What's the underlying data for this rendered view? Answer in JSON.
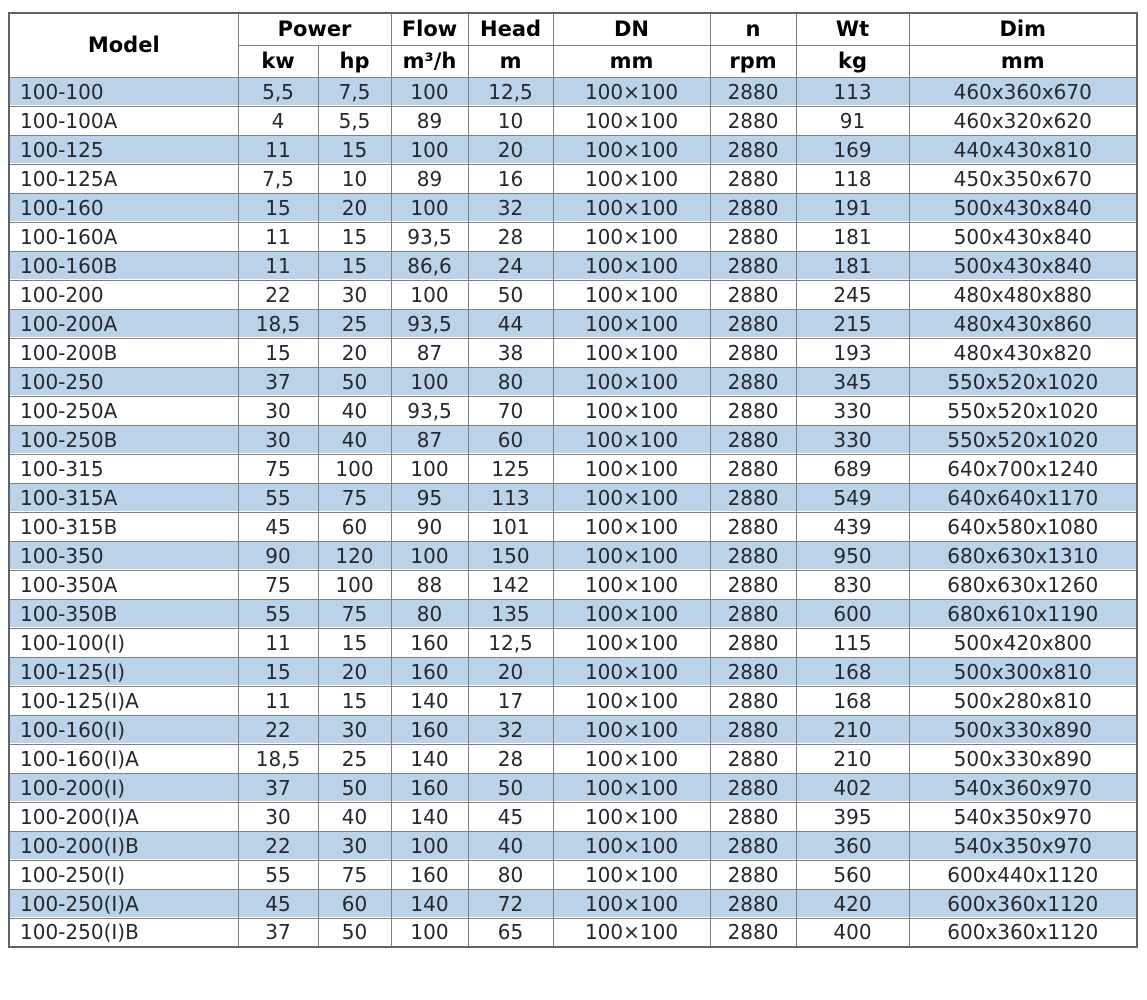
{
  "colors": {
    "row_alt_blue": "#bad3e9",
    "grid_border": "#808080",
    "outer_border": "#5f6368",
    "data_text": "#26282e",
    "header_text": "#000000"
  },
  "table": {
    "header": {
      "model": "Model",
      "power": "Power",
      "flow": "Flow",
      "head": "Head",
      "dn": "DN",
      "n": "n",
      "wt": "Wt",
      "dim": "Dim",
      "units": {
        "kw": "kw",
        "hp": "hp",
        "flow": "m³/h",
        "head": "m",
        "dn": "mm",
        "n": "rpm",
        "wt": "kg",
        "dim": "mm"
      }
    },
    "rows": [
      [
        "100-100",
        "5,5",
        "7,5",
        "100",
        "12,5",
        "100×100",
        "2880",
        "113",
        "460x360x670"
      ],
      [
        "100-100A",
        "4",
        "5,5",
        "89",
        "10",
        "100×100",
        "2880",
        "91",
        "460x320x620"
      ],
      [
        "100-125",
        "11",
        "15",
        "100",
        "20",
        "100×100",
        "2880",
        "169",
        "440x430x810"
      ],
      [
        "100-125A",
        "7,5",
        "10",
        "89",
        "16",
        "100×100",
        "2880",
        "118",
        "450x350x670"
      ],
      [
        "100-160",
        "15",
        "20",
        "100",
        "32",
        "100×100",
        "2880",
        "191",
        "500x430x840"
      ],
      [
        "100-160A",
        "11",
        "15",
        "93,5",
        "28",
        "100×100",
        "2880",
        "181",
        "500x430x840"
      ],
      [
        "100-160B",
        "11",
        "15",
        "86,6",
        "24",
        "100×100",
        "2880",
        "181",
        "500x430x840"
      ],
      [
        "100-200",
        "22",
        "30",
        "100",
        "50",
        "100×100",
        "2880",
        "245",
        "480x480x880"
      ],
      [
        "100-200A",
        "18,5",
        "25",
        "93,5",
        "44",
        "100×100",
        "2880",
        "215",
        "480x430x860"
      ],
      [
        "100-200B",
        "15",
        "20",
        "87",
        "38",
        "100×100",
        "2880",
        "193",
        "480x430x820"
      ],
      [
        "100-250",
        "37",
        "50",
        "100",
        "80",
        "100×100",
        "2880",
        "345",
        "550x520x1020"
      ],
      [
        "100-250A",
        "30",
        "40",
        "93,5",
        "70",
        "100×100",
        "2880",
        "330",
        "550x520x1020"
      ],
      [
        "100-250B",
        "30",
        "40",
        "87",
        "60",
        "100×100",
        "2880",
        "330",
        "550x520x1020"
      ],
      [
        "100-315",
        "75",
        "100",
        "100",
        "125",
        "100×100",
        "2880",
        "689",
        "640x700x1240"
      ],
      [
        "100-315A",
        "55",
        "75",
        "95",
        "113",
        "100×100",
        "2880",
        "549",
        "640x640x1170"
      ],
      [
        "100-315B",
        "45",
        "60",
        "90",
        "101",
        "100×100",
        "2880",
        "439",
        "640x580x1080"
      ],
      [
        "100-350",
        "90",
        "120",
        "100",
        "150",
        "100×100",
        "2880",
        "950",
        "680x630x1310"
      ],
      [
        "100-350A",
        "75",
        "100",
        "88",
        "142",
        "100×100",
        "2880",
        "830",
        "680x630x1260"
      ],
      [
        "100-350B",
        "55",
        "75",
        "80",
        "135",
        "100×100",
        "2880",
        "600",
        "680x610x1190"
      ],
      [
        "100-100(I)",
        "11",
        "15",
        "160",
        "12,5",
        "100×100",
        "2880",
        "115",
        "500x420x800"
      ],
      [
        "100-125(I)",
        "15",
        "20",
        "160",
        "20",
        "100×100",
        "2880",
        "168",
        "500x300x810"
      ],
      [
        "100-125(I)A",
        "11",
        "15",
        "140",
        "17",
        "100×100",
        "2880",
        "168",
        "500x280x810"
      ],
      [
        "100-160(I)",
        "22",
        "30",
        "160",
        "32",
        "100×100",
        "2880",
        "210",
        "500x330x890"
      ],
      [
        "100-160(I)A",
        "18,5",
        "25",
        "140",
        "28",
        "100×100",
        "2880",
        "210",
        "500x330x890"
      ],
      [
        "100-200(I)",
        "37",
        "50",
        "160",
        "50",
        "100×100",
        "2880",
        "402",
        "540x360x970"
      ],
      [
        "100-200(I)A",
        "30",
        "40",
        "140",
        "45",
        "100×100",
        "2880",
        "395",
        "540x350x970"
      ],
      [
        "100-200(I)B",
        "22",
        "30",
        "100",
        "40",
        "100×100",
        "2880",
        "360",
        "540x350x970"
      ],
      [
        "100-250(I)",
        "55",
        "75",
        "160",
        "80",
        "100×100",
        "2880",
        "560",
        "600x440x1120"
      ],
      [
        "100-250(I)A",
        "45",
        "60",
        "140",
        "72",
        "100×100",
        "2880",
        "420",
        "600x360x1120"
      ],
      [
        "100-250(I)B",
        "37",
        "50",
        "100",
        "65",
        "100×100",
        "2880",
        "400",
        "600x360x1120"
      ]
    ]
  }
}
